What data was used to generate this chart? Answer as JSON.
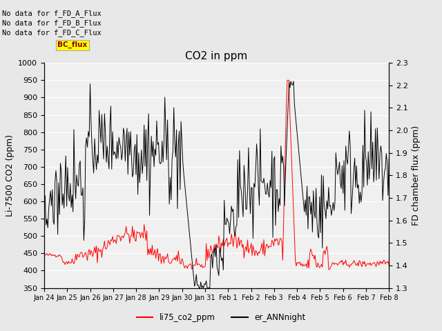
{
  "title": "CO2 in ppm",
  "ylabel_left": "Li-7500 CO2 (ppm)",
  "ylabel_right": "FD chamber flux (ppm)",
  "ylim_left": [
    350,
    1000
  ],
  "ylim_right": [
    1.3,
    2.3
  ],
  "yticks_left": [
    350,
    400,
    450,
    500,
    550,
    600,
    650,
    700,
    750,
    800,
    850,
    900,
    950,
    1000
  ],
  "yticks_right": [
    1.3,
    1.4,
    1.5,
    1.6,
    1.7,
    1.8,
    1.9,
    2.0,
    2.1,
    2.2,
    2.3
  ],
  "xtick_labels": [
    "Jan 24",
    "Jan 25",
    "Jan 26",
    "Jan 27",
    "Jan 28",
    "Jan 29",
    "Jan 30",
    "Jan 31",
    "Feb 1",
    "Feb 2",
    "Feb 3",
    "Feb 4",
    "Feb 5",
    "Feb 6",
    "Feb 7",
    "Feb 8"
  ],
  "legend_entries": [
    "li75_co2_ppm",
    "er_ANNnight"
  ],
  "legend_colors": [
    "red",
    "black"
  ],
  "no_data_texts": [
    "No data for f_FD_A_Flux",
    "No data for f_FD_B_Flux",
    "No data for f_FD_C_Flux"
  ],
  "bc_flux_label": "BC_flux",
  "bg_color": "#e8e8e8",
  "plot_bg_color": "#f0f0f0",
  "title_fontsize": 11,
  "label_fontsize": 9,
  "tick_fontsize": 8
}
